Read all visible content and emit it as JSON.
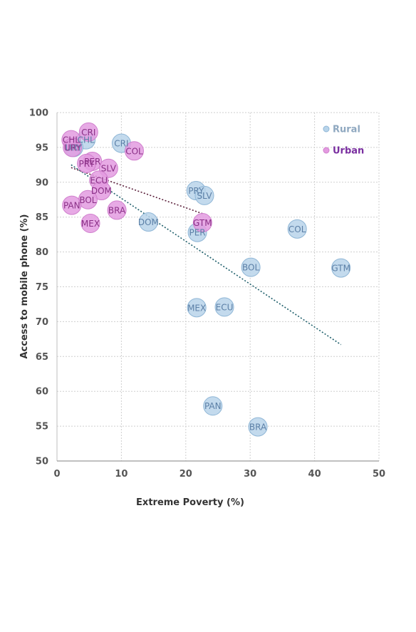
{
  "chart_data": {
    "type": "scatter",
    "title": "",
    "xlabel": "Extreme Poverty (%)",
    "ylabel": "Access to mobile phone (%)",
    "xlim": [
      0,
      50
    ],
    "ylim": [
      50,
      100
    ],
    "x_ticks": [
      "0",
      "10",
      "20",
      "30",
      "40",
      "50"
    ],
    "y_ticks": [
      "50",
      "55",
      "60",
      "65",
      "70",
      "75",
      "80",
      "85",
      "90",
      "95",
      "100"
    ],
    "grid": true,
    "legend_position": "top-right",
    "series": [
      {
        "name": "Rural",
        "color": "#b8d4ea",
        "stroke": "#8fb6d6",
        "label_color": "#5b7fa6",
        "legend_color": "#8fa8c0",
        "trendline_color": "#1f5f6b",
        "points": [
          {
            "label": "CHL",
            "x": 4.5,
            "y": 96.1
          },
          {
            "label": "URY",
            "x": 2.6,
            "y": 95.0
          },
          {
            "label": "CRI",
            "x": 10.0,
            "y": 95.6
          },
          {
            "label": "PRY",
            "x": 21.6,
            "y": 88.8
          },
          {
            "label": "SLV",
            "x": 22.9,
            "y": 88.1
          },
          {
            "label": "DOM",
            "x": 14.2,
            "y": 84.3
          },
          {
            "label": "PER",
            "x": 21.8,
            "y": 82.8
          },
          {
            "label": "COL",
            "x": 37.3,
            "y": 83.3
          },
          {
            "label": "BOL",
            "x": 30.1,
            "y": 77.8
          },
          {
            "label": "GTM",
            "x": 44.1,
            "y": 77.7
          },
          {
            "label": "MEX",
            "x": 21.7,
            "y": 72.0
          },
          {
            "label": "ECU",
            "x": 26.0,
            "y": 72.1
          },
          {
            "label": "PAN",
            "x": 24.2,
            "y": 57.9
          },
          {
            "label": "BRA",
            "x": 31.2,
            "y": 54.9
          }
        ]
      },
      {
        "name": "Urban",
        "color": "#e39be0",
        "stroke": "#d07fcd",
        "label_color": "#8a2f86",
        "legend_color": "#7a2fa0",
        "trendline_color": "#5a1f3a",
        "points": [
          {
            "label": "CRI",
            "x": 4.9,
            "y": 97.2
          },
          {
            "label": "CHL",
            "x": 2.2,
            "y": 96.1
          },
          {
            "label": "URY",
            "x": 2.4,
            "y": 95.0
          },
          {
            "label": "COL",
            "x": 12.0,
            "y": 94.5
          },
          {
            "label": "PER",
            "x": 5.5,
            "y": 93.0
          },
          {
            "label": "PRY",
            "x": 4.6,
            "y": 92.7
          },
          {
            "label": "SLV",
            "x": 8.0,
            "y": 92.0
          },
          {
            "label": "ECU",
            "x": 6.5,
            "y": 90.3
          },
          {
            "label": "DOM",
            "x": 6.9,
            "y": 88.8
          },
          {
            "label": "BOL",
            "x": 4.8,
            "y": 87.5
          },
          {
            "label": "PAN",
            "x": 2.3,
            "y": 86.7
          },
          {
            "label": "BRA",
            "x": 9.3,
            "y": 86.0
          },
          {
            "label": "GTM",
            "x": 22.6,
            "y": 84.2
          },
          {
            "label": "MEX",
            "x": 5.2,
            "y": 84.1
          }
        ]
      }
    ],
    "trendlines": [
      {
        "series": "Rural",
        "x": [
          2.2,
          44.1
        ],
        "y": [
          92.5,
          66.7
        ]
      },
      {
        "series": "Urban",
        "x": [
          2.2,
          22.6
        ],
        "y": [
          92.1,
          85.5
        ]
      }
    ]
  }
}
